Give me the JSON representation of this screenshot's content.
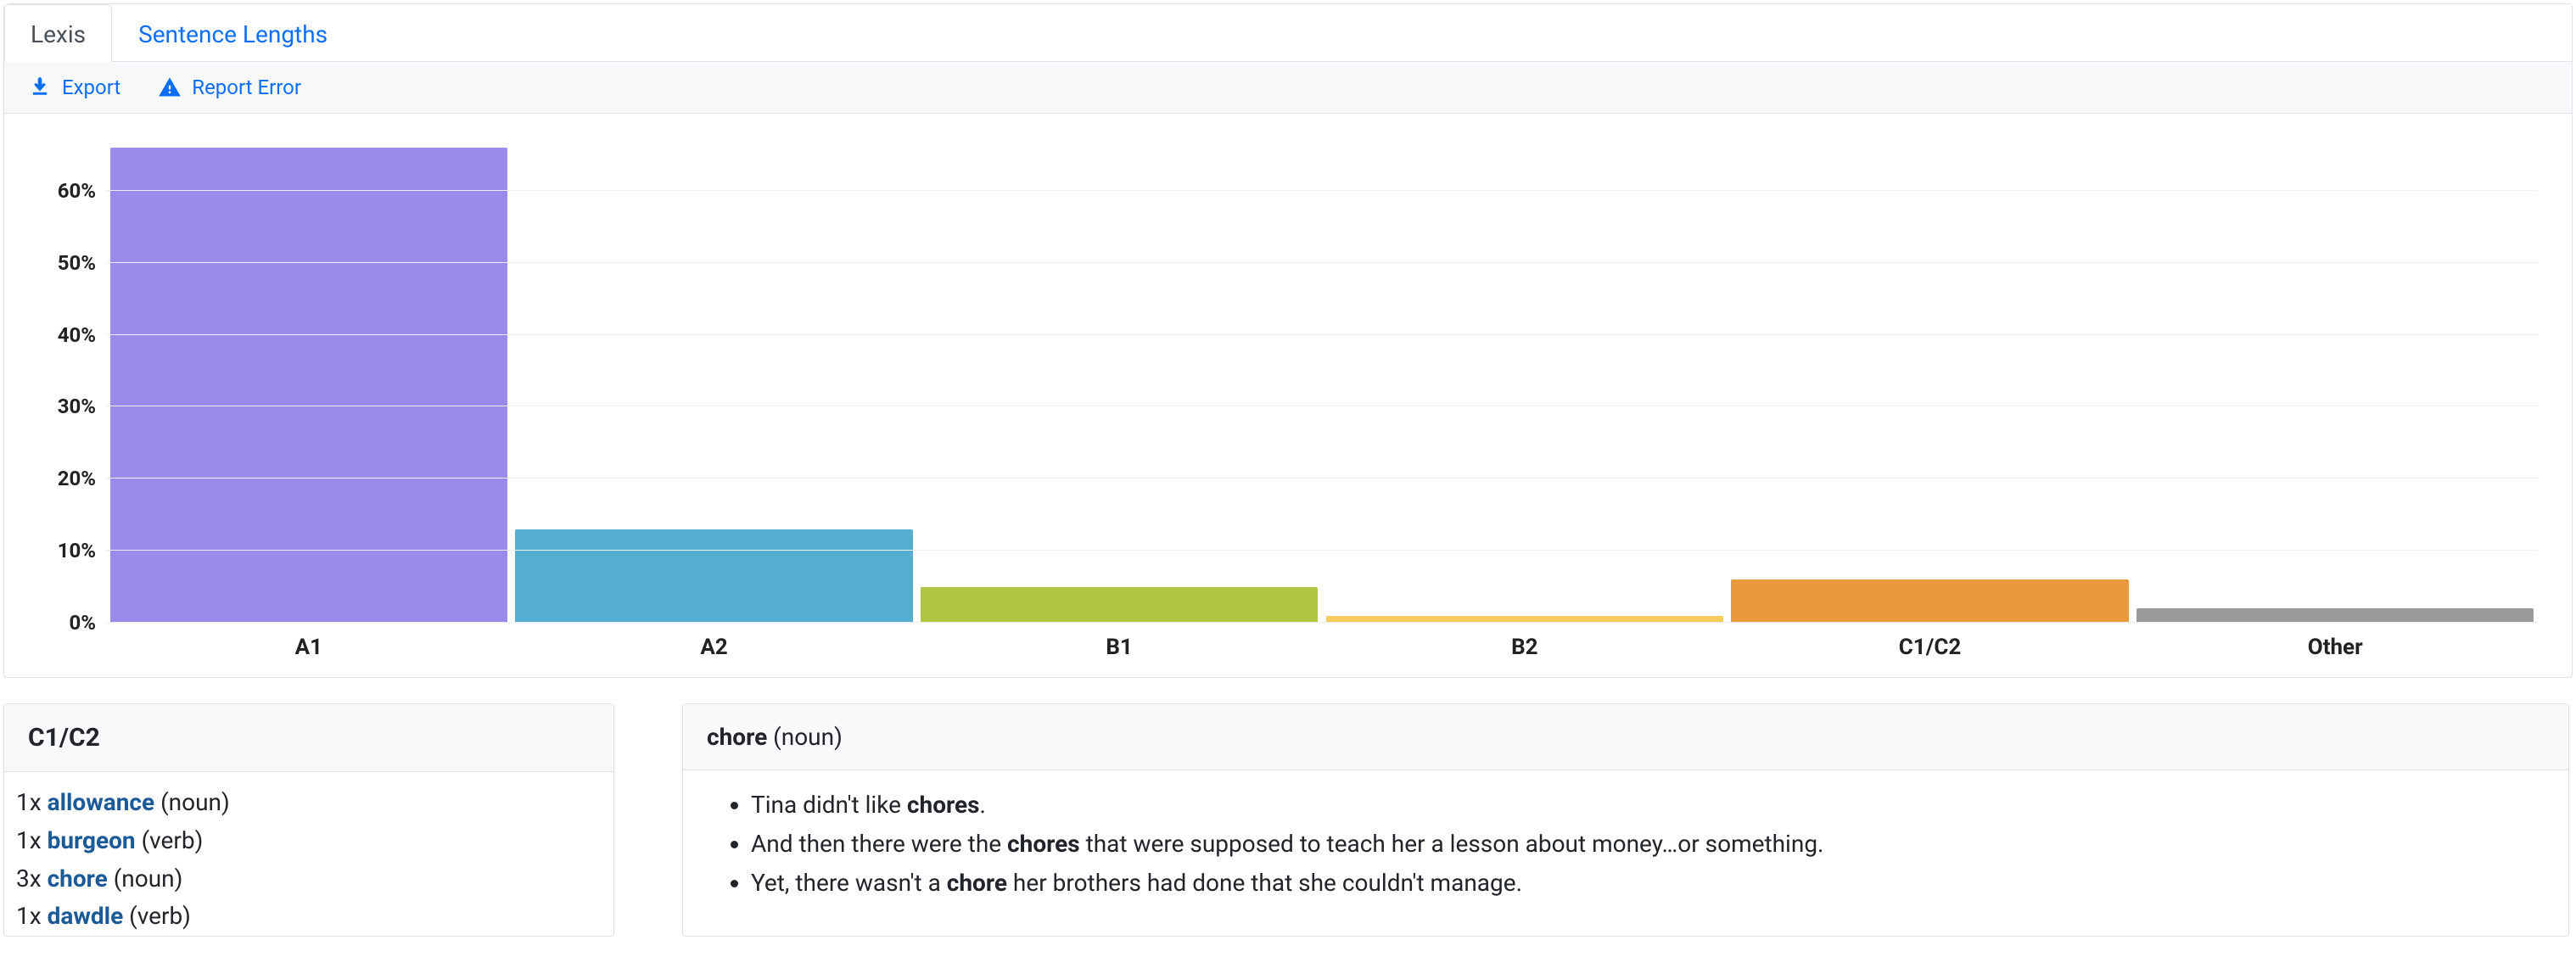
{
  "tabs": [
    {
      "label": "Lexis",
      "active": true
    },
    {
      "label": "Sentence Lengths",
      "active": false
    }
  ],
  "toolbar": {
    "export_label": "Export",
    "report_label": "Report Error"
  },
  "chart": {
    "type": "bar",
    "y_ticks": [
      "60%",
      "50%",
      "40%",
      "30%",
      "20%",
      "10%",
      "0%"
    ],
    "y_max": 66,
    "bars": [
      {
        "label": "A1",
        "value": 66,
        "color": "#9a8aea"
      },
      {
        "label": "A2",
        "value": 13,
        "color": "#53aed0"
      },
      {
        "label": "B1",
        "value": 5,
        "color": "#b0c642"
      },
      {
        "label": "B2",
        "value": 1,
        "color": "#f6cd5a"
      },
      {
        "label": "C1/C2",
        "value": 6,
        "color": "#e89a3c"
      },
      {
        "label": "Other",
        "value": 2,
        "color": "#9a9a9a"
      }
    ],
    "grid_color": "#eceef0",
    "background_color": "#ffffff",
    "axis_font_size": 24,
    "axis_font_weight": 700
  },
  "word_list": {
    "title": "C1/C2",
    "items": [
      {
        "count": "1x",
        "word": "allowance",
        "pos": "(noun)"
      },
      {
        "count": "1x",
        "word": "burgeon",
        "pos": "(verb)"
      },
      {
        "count": "3x",
        "word": "chore",
        "pos": "(noun)"
      },
      {
        "count": "1x",
        "word": "dawdle",
        "pos": "(verb)"
      }
    ]
  },
  "detail": {
    "headword": "chore",
    "pos": "(noun)",
    "examples": [
      {
        "pre": "Tina didn't like ",
        "match": "chores",
        "post": "."
      },
      {
        "pre": "And then there were the ",
        "match": "chores",
        "post": " that were supposed to teach her a lesson about money…or something."
      },
      {
        "pre": "Yet, there wasn't a ",
        "match": "chore",
        "post": " her brothers had done that she couldn't manage."
      }
    ]
  }
}
